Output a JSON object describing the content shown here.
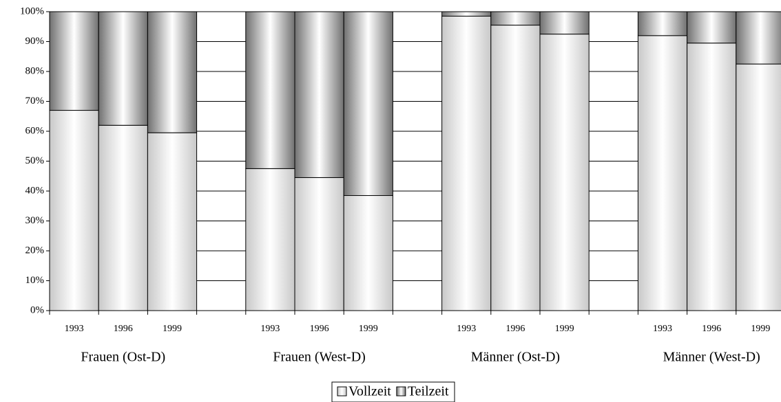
{
  "chart_data": {
    "type": "stacked_bar",
    "categories": [
      "1993",
      "1996",
      "1999",
      null,
      "1993",
      "1996",
      "1999",
      null,
      "1993",
      "1996",
      "1999",
      null,
      "1993",
      "1996",
      "1999"
    ],
    "groups": [
      "Frauen (Ost-D)",
      "Frauen (West-D)",
      "Männer (Ost-D)",
      "Männer (West-D)"
    ],
    "series": [
      {
        "name": "Vollzeit",
        "color": "#c8c8c8",
        "values": [
          67,
          62,
          59.5,
          null,
          47.5,
          44.5,
          38.5,
          null,
          98.5,
          95.5,
          92.5,
          null,
          92,
          89.5,
          82.5
        ]
      },
      {
        "name": "Teilzeit",
        "color": "#707070",
        "values": [
          33,
          38,
          40.5,
          null,
          52.5,
          55.5,
          61.5,
          null,
          1.5,
          4.5,
          7.5,
          null,
          8,
          10.5,
          17.5
        ]
      }
    ],
    "ylim": [
      0,
      100
    ],
    "yticks": [
      {
        "value": 0,
        "label": "0%"
      },
      {
        "value": 10,
        "label": "10%"
      },
      {
        "value": 20,
        "label": "20%"
      },
      {
        "value": 30,
        "label": "30%"
      },
      {
        "value": 40,
        "label": "40%"
      },
      {
        "value": 50,
        "label": "50%"
      },
      {
        "value": 60,
        "label": "60%"
      },
      {
        "value": 70,
        "label": "70%"
      },
      {
        "value": 80,
        "label": "80%"
      },
      {
        "value": 90,
        "label": "90%"
      },
      {
        "value": 100,
        "label": "100%"
      }
    ],
    "grid": true
  }
}
